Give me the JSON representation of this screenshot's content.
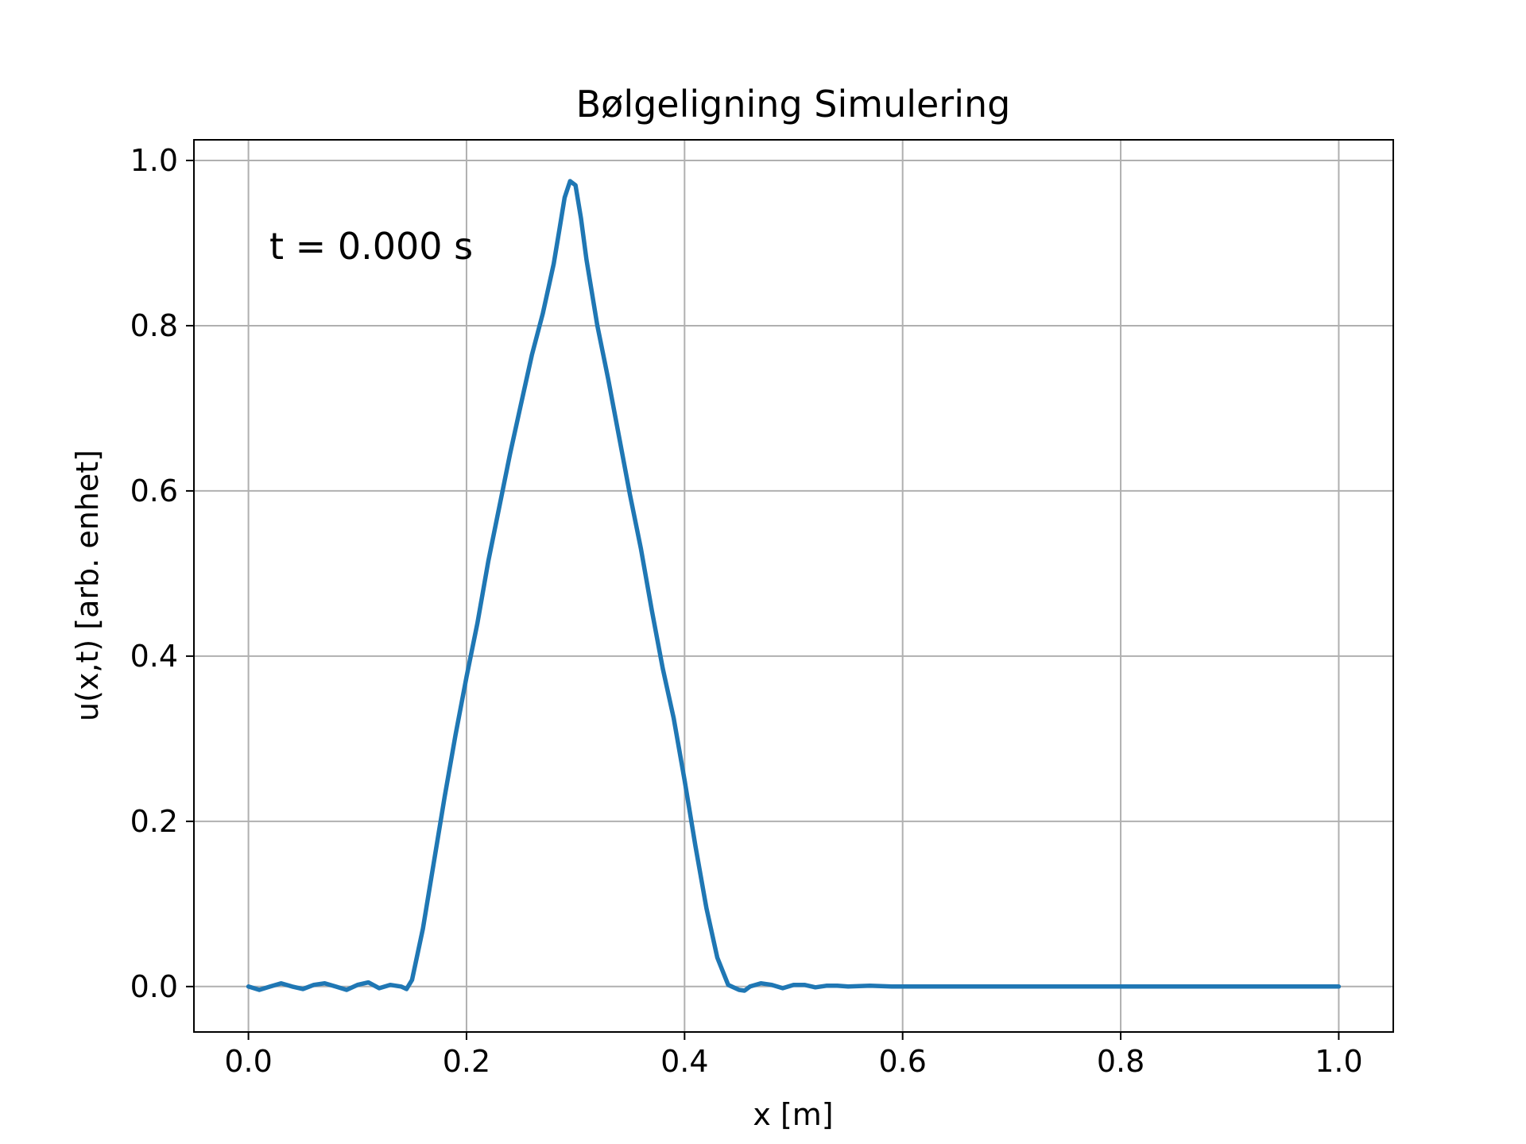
{
  "chart_data": {
    "type": "line",
    "title": "Bølgeligning Simulering",
    "xlabel": "x [m]",
    "ylabel": "u(x,t) [arb. enhet]",
    "xlim": [
      -0.05,
      1.05
    ],
    "ylim": [
      -0.055,
      1.025
    ],
    "xticks": [
      0.0,
      0.2,
      0.4,
      0.6,
      0.8,
      1.0
    ],
    "xtick_labels": [
      "0.0",
      "0.2",
      "0.4",
      "0.6",
      "0.8",
      "1.0"
    ],
    "yticks": [
      0.0,
      0.2,
      0.4,
      0.6,
      0.8,
      1.0
    ],
    "ytick_labels": [
      "0.0",
      "0.2",
      "0.4",
      "0.6",
      "0.8",
      "1.0"
    ],
    "grid": true,
    "annotation": "t = 0.000 s",
    "series": [
      {
        "color": "#1f77b4",
        "x": [
          0.0,
          0.01,
          0.02,
          0.03,
          0.04,
          0.05,
          0.06,
          0.07,
          0.08,
          0.09,
          0.1,
          0.11,
          0.12,
          0.13,
          0.14,
          0.145,
          0.15,
          0.16,
          0.17,
          0.18,
          0.19,
          0.2,
          0.21,
          0.22,
          0.23,
          0.24,
          0.25,
          0.26,
          0.27,
          0.28,
          0.285,
          0.29,
          0.295,
          0.3,
          0.305,
          0.31,
          0.32,
          0.33,
          0.34,
          0.35,
          0.36,
          0.37,
          0.38,
          0.39,
          0.4,
          0.41,
          0.42,
          0.43,
          0.44,
          0.45,
          0.455,
          0.46,
          0.47,
          0.48,
          0.49,
          0.5,
          0.51,
          0.52,
          0.53,
          0.54,
          0.55,
          0.57,
          0.59,
          0.61,
          0.63,
          0.65,
          0.67,
          0.69,
          0.71,
          0.73,
          0.75,
          0.77,
          0.79,
          0.81,
          0.83,
          0.85,
          0.87,
          0.89,
          0.91,
          0.93,
          0.95,
          0.97,
          0.99,
          1.0
        ],
        "y": [
          0.0,
          -0.004,
          0.0,
          0.004,
          0.0,
          -0.003,
          0.002,
          0.004,
          0.0,
          -0.004,
          0.002,
          0.005,
          -0.002,
          0.002,
          0.0,
          -0.003,
          0.008,
          0.07,
          0.15,
          0.23,
          0.305,
          0.375,
          0.44,
          0.515,
          0.58,
          0.645,
          0.705,
          0.765,
          0.815,
          0.875,
          0.915,
          0.955,
          0.975,
          0.97,
          0.93,
          0.88,
          0.8,
          0.735,
          0.665,
          0.595,
          0.53,
          0.455,
          0.385,
          0.325,
          0.25,
          0.17,
          0.095,
          0.035,
          0.002,
          -0.004,
          -0.005,
          0.0,
          0.004,
          0.002,
          -0.002,
          0.002,
          0.002,
          -0.001,
          0.001,
          0.001,
          0.0,
          0.001,
          0.0,
          0.0,
          0.0,
          0.0,
          0.0,
          0.0,
          0.0,
          0.0,
          0.0,
          0.0,
          0.0,
          0.0,
          0.0,
          0.0,
          0.0,
          0.0,
          0.0,
          0.0,
          0.0,
          0.0,
          0.0,
          0.0
        ]
      }
    ]
  }
}
